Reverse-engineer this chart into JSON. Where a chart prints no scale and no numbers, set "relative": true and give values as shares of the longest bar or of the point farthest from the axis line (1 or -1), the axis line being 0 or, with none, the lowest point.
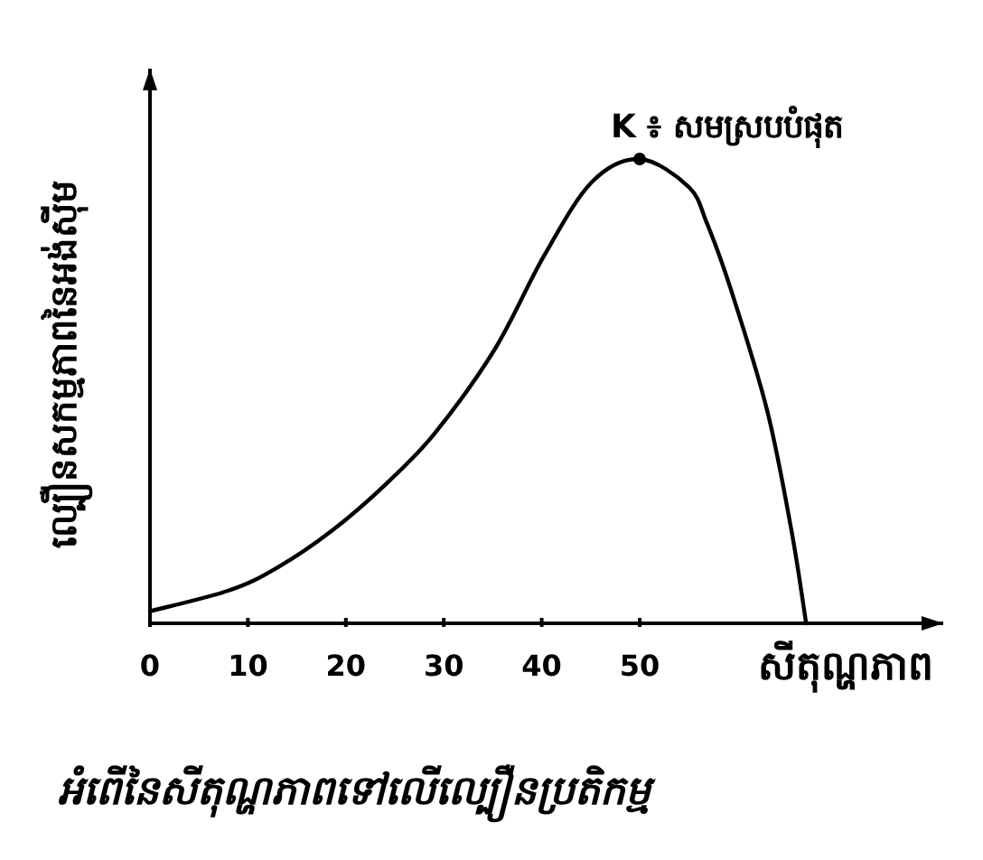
{
  "chart_data": {
    "type": "line",
    "title": "អំពើនៃសីតុណ្ហភាពទៅលើល្បឿនប្រតិកម្ម",
    "xlabel": "សីតុណ្ហភាព",
    "ylabel": "ល្បឿនសកម្មភាពនៃអង់ស៊ីម",
    "relative": true,
    "xlim": [
      0,
      81
    ],
    "xticks": [
      0,
      10,
      20,
      30,
      40,
      50
    ],
    "series": [
      {
        "color": "#000000",
        "x": [
          0,
          8.1,
          13,
          18.6,
          24.1,
          29.1,
          35.2,
          40.2,
          45.1,
          50,
          55,
          56.9,
          59.3,
          63,
          65.5,
          67
        ],
        "values": [
          0.026,
          0.071,
          0.12,
          0.2,
          0.3,
          0.41,
          0.59,
          0.79,
          0.95,
          1,
          0.94,
          0.86,
          0.72,
          0.46,
          0.2,
          0
        ]
      }
    ],
    "annotations": [
      {
        "text": "K ៖ សមស្របបំផុត",
        "x": 50,
        "y": 1
      }
    ]
  }
}
